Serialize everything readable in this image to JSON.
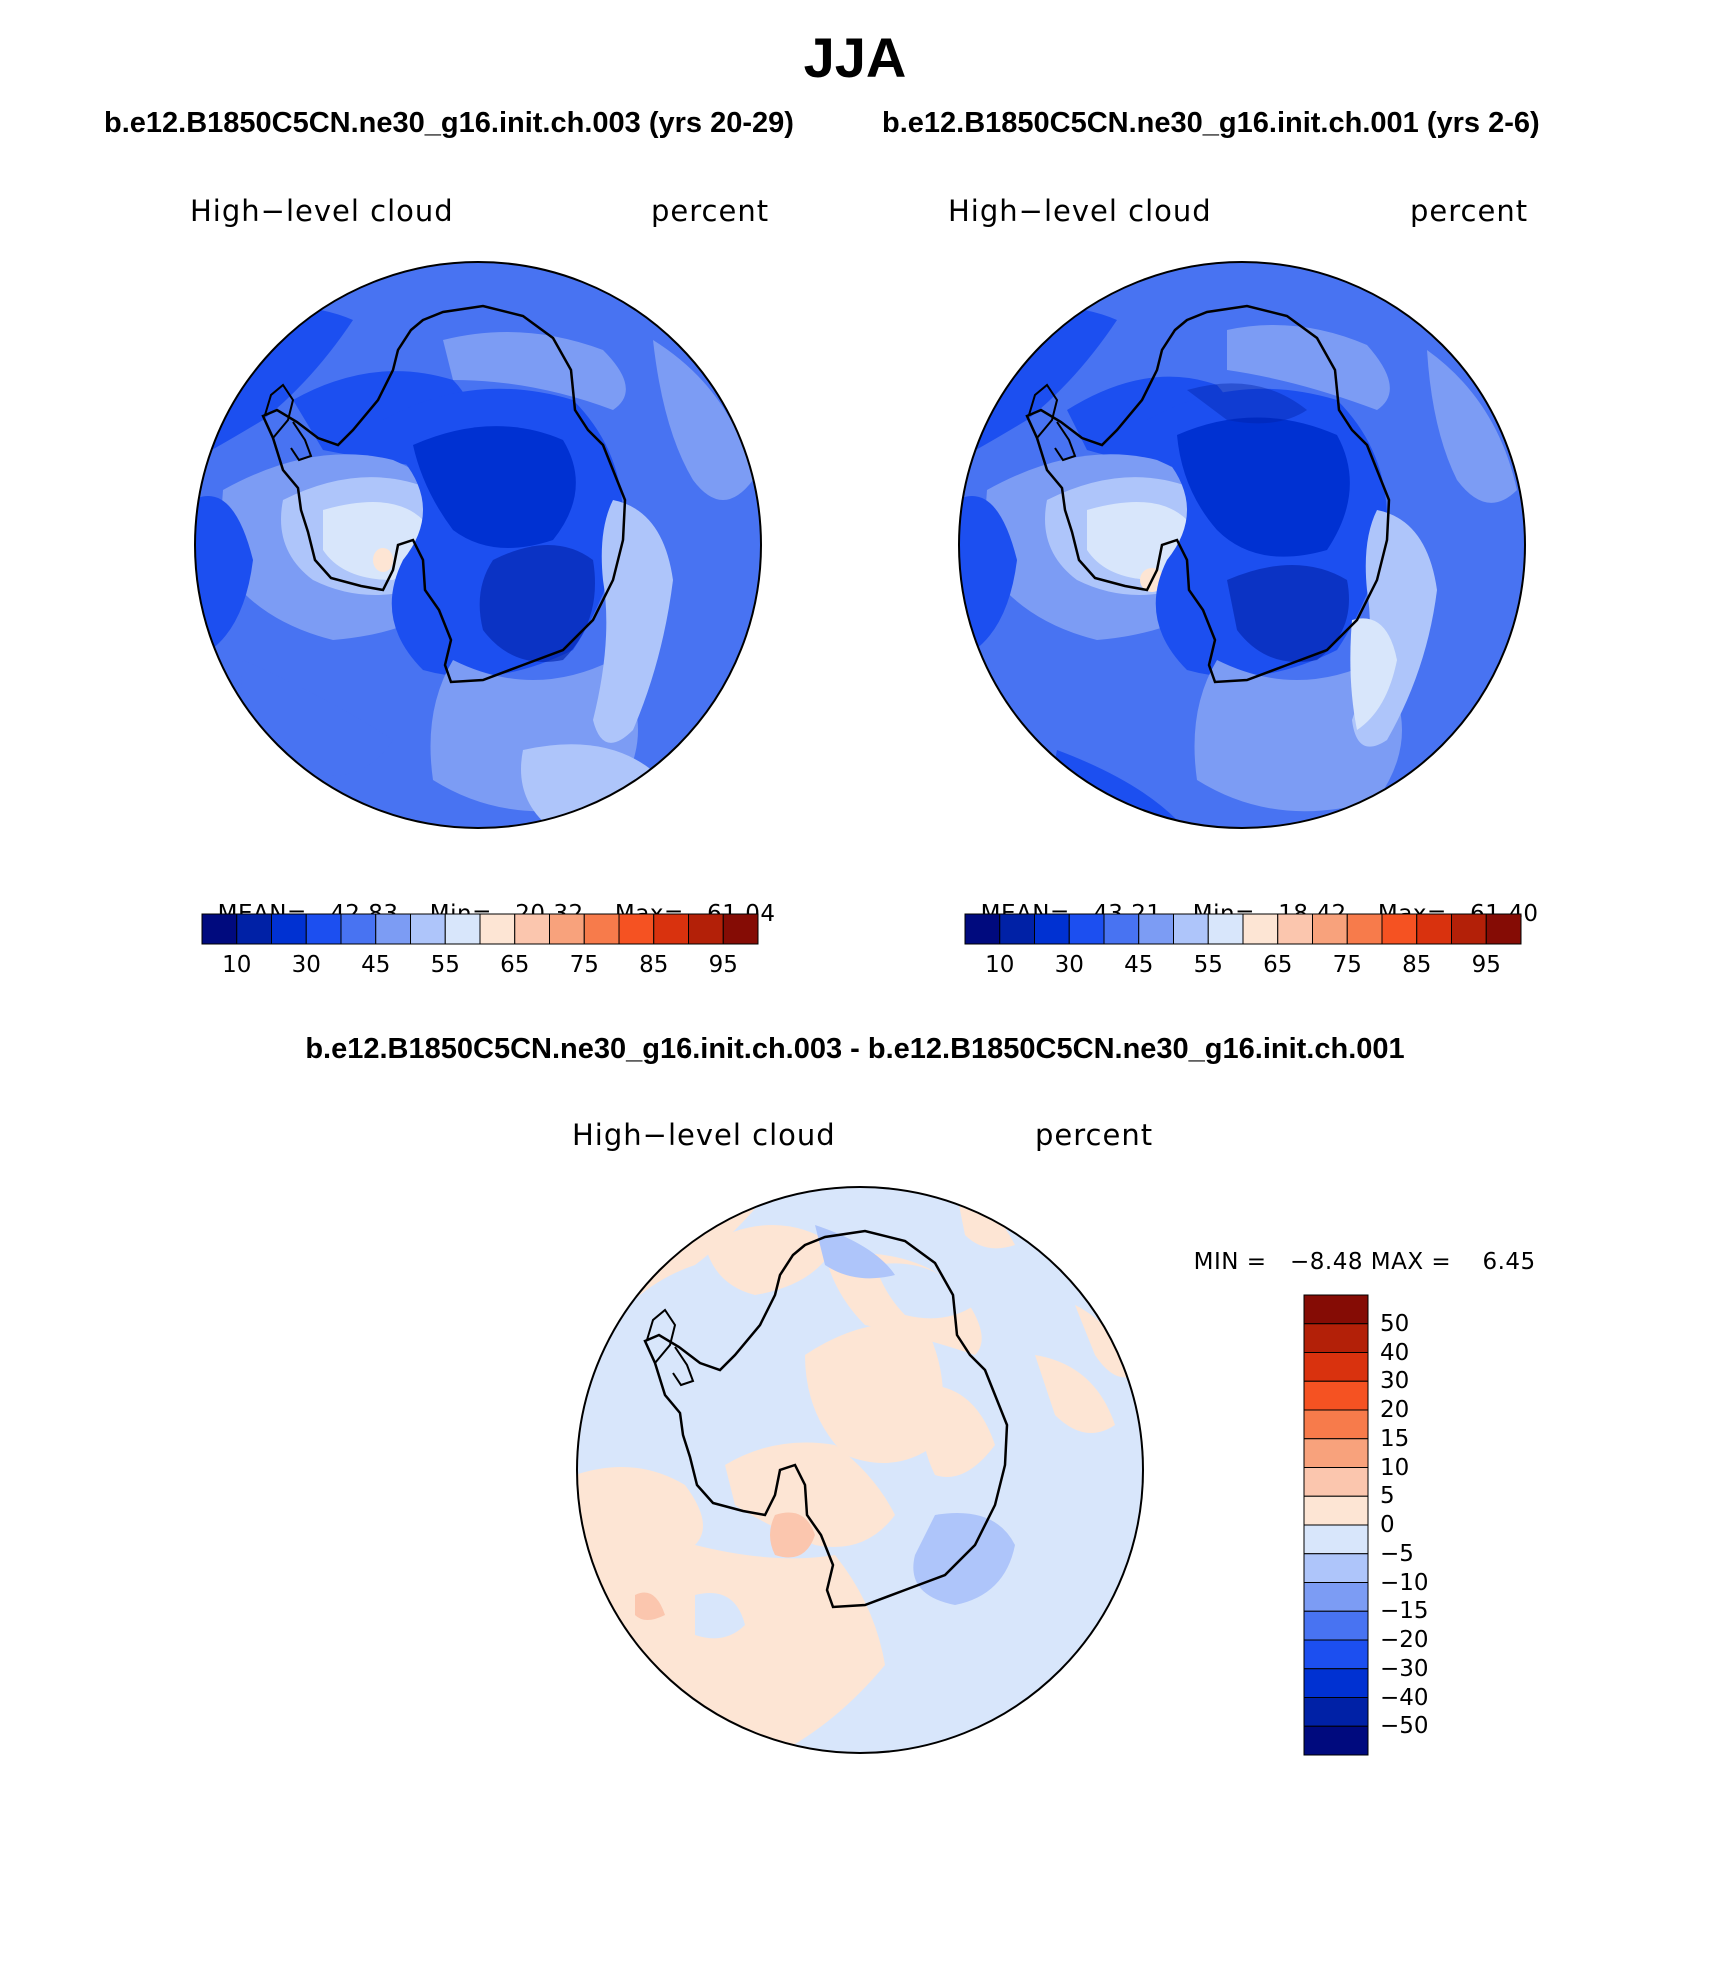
{
  "figure": {
    "season": "JJA",
    "left_case_title": "b.e12.B1850C5CN.ne30_g16.init.ch.003 (yrs 20-29)",
    "right_case_title": "b.e12.B1850C5CN.ne30_g16.init.ch.001 (yrs 2-6)",
    "diff_title": "b.e12.B1850C5CN.ne30_g16.init.ch.003 - b.e12.B1850C5CN.ne30_g16.init.ch.001"
  },
  "panels": {
    "left": {
      "variable": "High−level cloud",
      "units": "percent",
      "mean_label": "MEAN=",
      "mean": "42.83",
      "min_label": "Min=",
      "min": "20.32",
      "max_label": "Max=",
      "max": "61.04"
    },
    "right": {
      "variable": "High−level cloud",
      "units": "percent",
      "mean_label": "MEAN=",
      "mean": "43.21",
      "min_label": "Min=",
      "min": "18.42",
      "max_label": "Max=",
      "max": "61.40"
    },
    "diff": {
      "variable": "High−level cloud",
      "units": "percent",
      "min_label": "MIN =",
      "min": "−8.48",
      "max_label": "MAX =",
      "max": "6.45"
    }
  },
  "colorbars": {
    "abs": {
      "colors": [
        "#000a7e",
        "#0021a6",
        "#0031d2",
        "#1c4ff0",
        "#4873f2",
        "#7c9cf4",
        "#aec5fa",
        "#d8e6fb",
        "#fde5d4",
        "#fbc6ae",
        "#f8a27c",
        "#f77b4b",
        "#f55222",
        "#d9320e",
        "#b32008",
        "#850c05"
      ],
      "tick_labels": [
        "10",
        "30",
        "45",
        "55",
        "65",
        "75",
        "85",
        "95"
      ]
    },
    "diff": {
      "colors": [
        "#850c05",
        "#b32008",
        "#d9320e",
        "#f55222",
        "#f77b4b",
        "#f8a27c",
        "#fbc6ae",
        "#fde5d4",
        "#d8e6fb",
        "#aec5fa",
        "#7c9cf4",
        "#4873f2",
        "#1c4ff0",
        "#0031d2",
        "#0021a6",
        "#000a7e"
      ],
      "tick_labels": [
        "50",
        "40",
        "30",
        "20",
        "15",
        "10",
        "5",
        "0",
        "−5",
        "−10",
        "−15",
        "−20",
        "−30",
        "−40",
        "−50"
      ]
    }
  },
  "map_colors": {
    "abs_background": "#4873f2",
    "abs_mid": "#1c4ff0",
    "abs_dark": "#0031d2",
    "abs_light": "#7c9cf4",
    "abs_lighter": "#aec5fa",
    "abs_lightest": "#d8e6fb",
    "abs_warm": "#fde5d4",
    "diff_neg": "#d8e6fb",
    "diff_pos": "#fde5d4",
    "diff_neg2": "#aec5fa",
    "diff_pos2": "#fbc6ae"
  }
}
